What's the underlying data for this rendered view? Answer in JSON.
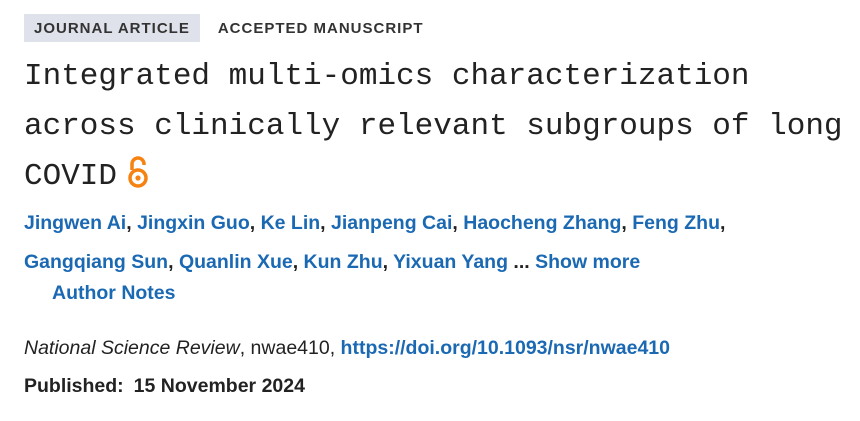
{
  "header": {
    "badges": [
      "JOURNAL ARTICLE",
      "ACCEPTED MANUSCRIPT"
    ],
    "title": "Integrated multi-omics characterization across clinically relevant subgroups of long COVID"
  },
  "authors": {
    "names": [
      "Jingwen Ai",
      "Jingxin Guo",
      "Ke Lin",
      "Jianpeng Cai",
      "Haocheng Zhang",
      "Feng Zhu",
      "Gangqiang Sun",
      "Quanlin Xue",
      "Kun Zhu",
      "Yixuan Yang"
    ],
    "separator": ",",
    "ellipsis": "...",
    "show_more": "Show more",
    "author_notes": "Author Notes"
  },
  "citation": {
    "journal": "National Science Review",
    "separator": ",",
    "article_id": "nwae410",
    "doi": "https://doi.org/10.1093/nsr/nwae410",
    "published_label": "Published:",
    "published_date": "15 November 2024"
  }
}
